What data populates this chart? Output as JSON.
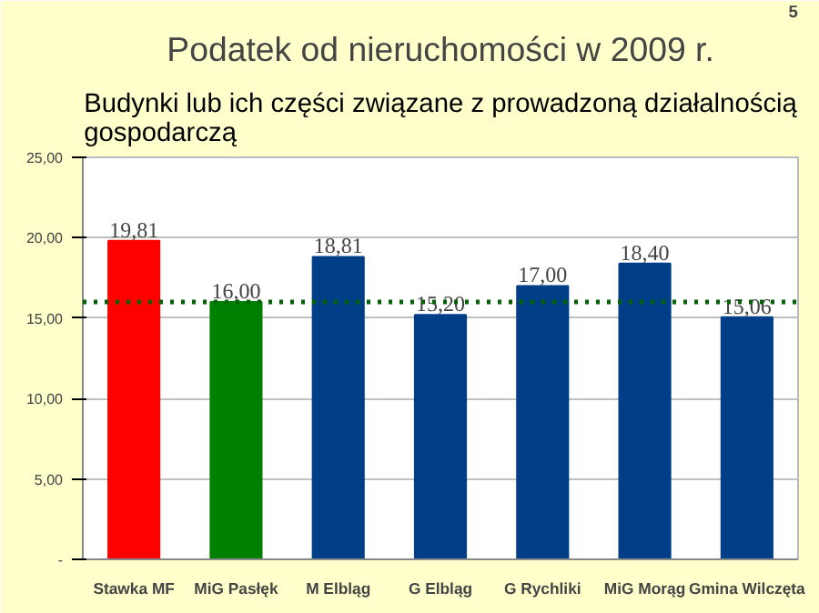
{
  "chart_data": {
    "type": "bar",
    "title": "Podatek od nieruchomości w 2009 r.",
    "subtitle": "Budynki lub ich części związane z prowadzoną działalnością gospodarczą",
    "annotations": [
      "5"
    ],
    "categories": [
      "Stawka MF",
      "MiG Pasłęk",
      "M Elbląg",
      "G Elbląg",
      "G Rychliki",
      "MiG Morąg",
      "Gmina Wilczęta"
    ],
    "values": [
      19.81,
      16.0,
      18.81,
      15.2,
      17.0,
      18.4,
      15.06
    ],
    "colors": [
      "#ff0000",
      "#008000",
      "#003f87",
      "#003f87",
      "#003f87",
      "#003f87",
      "#003f87"
    ],
    "value_labels": [
      "19,81",
      "16,00",
      "18,81",
      "15,20",
      "17,00",
      "18,40",
      "15,06"
    ],
    "ylim": [
      0,
      25
    ],
    "yticks": [
      {
        "value": 0,
        "label": "-"
      },
      {
        "value": 5,
        "label": "5,00"
      },
      {
        "value": 10,
        "label": "10,00"
      },
      {
        "value": 15,
        "label": "15,00"
      },
      {
        "value": 20,
        "label": "20,00"
      },
      {
        "value": 25,
        "label": "25,00"
      }
    ],
    "ref_lines": [
      {
        "axis": "y",
        "value": 16.0,
        "color": "#006400",
        "line_style": "dotted"
      }
    ],
    "grid": "y"
  }
}
